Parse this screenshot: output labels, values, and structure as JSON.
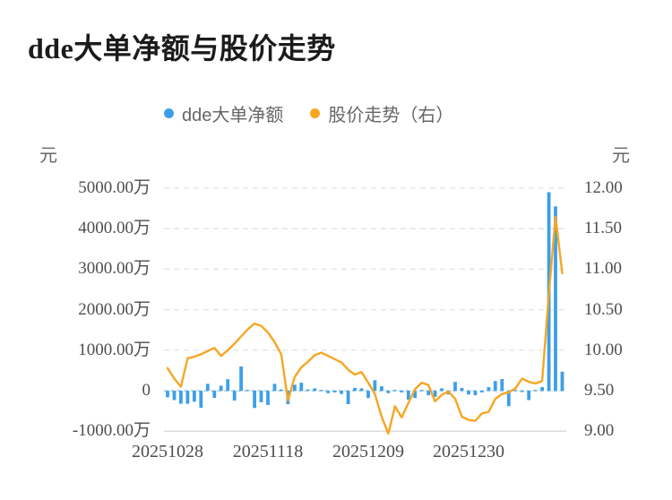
{
  "title": "dde大单净额与股价走势",
  "legend": {
    "items": [
      {
        "label": "dde大单净额",
        "color": "#3E9FE8"
      },
      {
        "label": "股价走势（右）",
        "color": "#F6A623"
      }
    ]
  },
  "left_axis": {
    "unit": "元",
    "ticks": [
      "5000.00万",
      "4000.00万",
      "3000.00万",
      "2000.00万",
      "1000.00万",
      "0",
      "-1000.00万"
    ]
  },
  "right_axis": {
    "unit": "元",
    "ticks": [
      "12.00",
      "11.50",
      "11.00",
      "10.50",
      "10.00",
      "9.50",
      "9.00"
    ]
  },
  "x_axis": {
    "labels": [
      "20251028",
      "20251118",
      "20251209",
      "20251230"
    ],
    "label_indices": [
      0,
      15,
      30,
      45
    ]
  },
  "colors": {
    "bar": "#3E9FE8",
    "line": "#F6A623",
    "grid": "#e3e3e3",
    "baseline": "#dcdcdc",
    "zero_dash": "#a9d5f2",
    "tick_text": "#4d4d4d",
    "legend_text": "#666666",
    "title_text": "#1b1b1b"
  },
  "chart_data": {
    "type": "bar",
    "title": "dde大单净额与股价走势",
    "xlabel": "",
    "ylabel_left": "元",
    "ylabel_right": "元",
    "grid": true,
    "legend_position": "top",
    "x_tick_labels": [
      "20251028",
      "20251118",
      "20251209",
      "20251230"
    ],
    "x_tick_indices": [
      0,
      15,
      30,
      45
    ],
    "left_ylim_wan": [
      -1000,
      5000
    ],
    "right_ylim": [
      9.0,
      12.0
    ],
    "n_points": 60,
    "series": [
      {
        "name": "dde大单净额",
        "type": "bar",
        "axis": "left",
        "unit": "万元",
        "color": "#3E9FE8",
        "values": [
          -160,
          -230,
          -320,
          -320,
          -270,
          -420,
          170,
          -175,
          125,
          285,
          -240,
          600,
          20,
          -425,
          -280,
          -350,
          170,
          30,
          -330,
          150,
          200,
          30,
          60,
          20,
          -60,
          -40,
          -80,
          -330,
          70,
          60,
          -180,
          260,
          110,
          -60,
          20,
          -40,
          -220,
          -180,
          20,
          -110,
          -150,
          60,
          -90,
          220,
          70,
          -90,
          -110,
          -40,
          90,
          240,
          290,
          -380,
          20,
          -30,
          -230,
          20,
          90,
          4900,
          4550,
          470
        ]
      },
      {
        "name": "股价走势（右）",
        "type": "line",
        "axis": "right",
        "unit": "元",
        "color": "#F6A623",
        "values": [
          9.78,
          9.65,
          9.55,
          9.9,
          9.92,
          9.95,
          9.99,
          10.03,
          9.93,
          10.0,
          10.08,
          10.17,
          10.26,
          10.33,
          10.3,
          10.22,
          10.1,
          9.95,
          9.38,
          9.67,
          9.79,
          9.86,
          9.94,
          9.97,
          9.93,
          9.89,
          9.85,
          9.76,
          9.7,
          9.73,
          9.6,
          9.46,
          9.18,
          8.97,
          9.31,
          9.17,
          9.35,
          9.52,
          9.6,
          9.57,
          9.37,
          9.45,
          9.49,
          9.4,
          9.18,
          9.14,
          9.13,
          9.22,
          9.24,
          9.4,
          9.46,
          9.48,
          9.53,
          9.65,
          9.61,
          9.59,
          9.62,
          10.7,
          11.65,
          10.95
        ]
      }
    ]
  }
}
